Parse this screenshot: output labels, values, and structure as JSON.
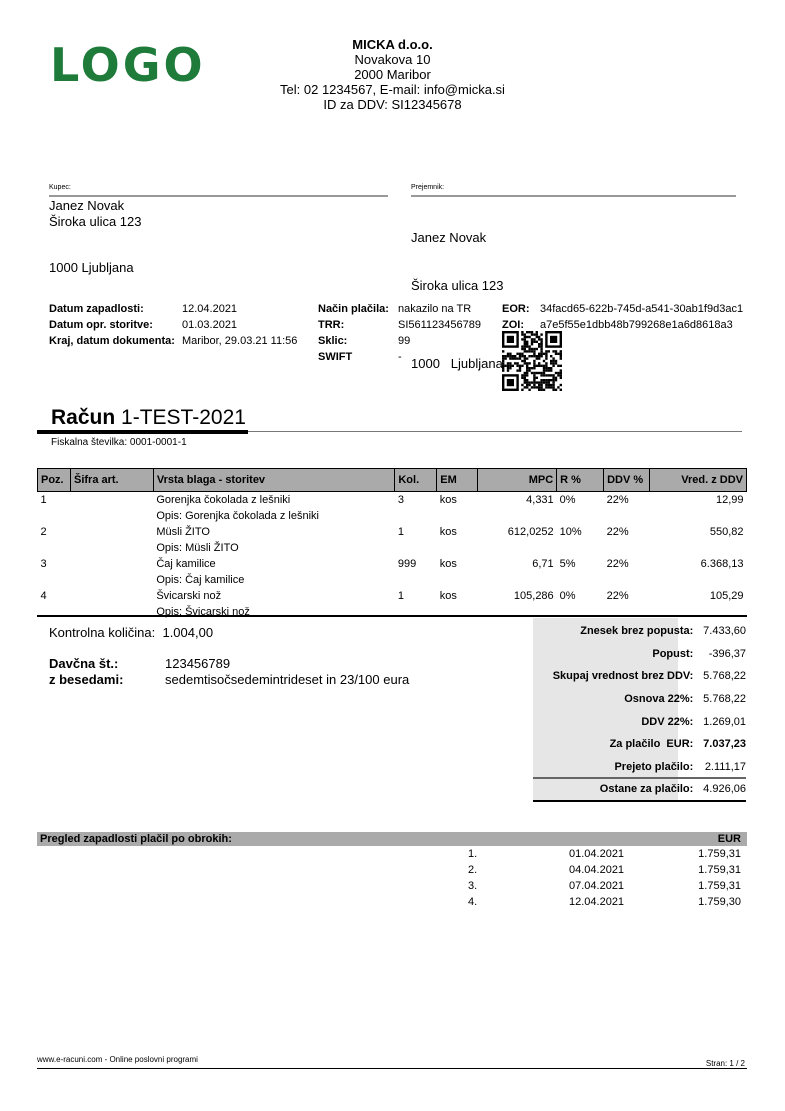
{
  "logo": "LOGO",
  "company": {
    "name": "MICKA d.o.o.",
    "street": "Novakova 10",
    "city": "2000 Maribor",
    "contact": "Tel: 02 1234567, E-mail: info@micka.si",
    "vat": "ID za DDV: SI12345678"
  },
  "buyer": {
    "label": "Kupec:",
    "name": "Janez Novak",
    "street": "Široka ulica 123",
    "city": "1000 Ljubljana"
  },
  "recipient": {
    "label": "Prejemnik:",
    "name": "Janez Novak",
    "street": "Široka ulica 123",
    "city": "1000   Ljubljana"
  },
  "meta": {
    "due_label": "Datum zapadlosti:",
    "due": "12.04.2021",
    "service_label": "Datum opr. storitve:",
    "service": "01.03.2021",
    "place_label": "Kraj, datum dokumenta:",
    "place": "Maribor, 29.03.21 11:56",
    "payment_label": "Način plačila:",
    "payment": "nakazilo na TR",
    "trr_label": "TRR:",
    "trr": "SI561123456789",
    "ref_label": "Sklic:",
    "ref": "99",
    "swift_label": "SWIFT",
    "swift": "-",
    "eor_label": "EOR:",
    "eor": "34facd65-622b-745d-a541-30ab1f9d3ac1",
    "zoi_label": "ZOI:",
    "zoi": "a7e5f55e1dbb48b799268e1a6d8618a3"
  },
  "invoice": {
    "title": "Račun",
    "number": "1-TEST-2021",
    "fiscal": "Fiskalna številka: 0001-0001-1"
  },
  "table": {
    "headers": [
      "Poz.",
      "Šifra art.",
      "Vrsta blaga - storitev",
      "Kol.",
      "EM",
      "MPC",
      "R %",
      "DDV %",
      "Vred. z DDV"
    ],
    "rows": [
      {
        "poz": "1",
        "sifra": "",
        "name": "Gorenjka čokolada z lešniki",
        "desc": "Opis: Gorenjka čokolada z lešniki",
        "kol": "3",
        "em": "kos",
        "mpc": "4,331",
        "r": "0%",
        "ddv": "22%",
        "value": "12,99"
      },
      {
        "poz": "2",
        "sifra": "",
        "name": "Müsli ŽITO",
        "desc": "Opis: Müsli ŽITO",
        "kol": "1",
        "em": "kos",
        "mpc": "612,0252",
        "r": "10%",
        "ddv": "22%",
        "value": "550,82"
      },
      {
        "poz": "3",
        "sifra": "",
        "name": "Čaj kamilice",
        "desc": "Opis: Čaj kamilice",
        "kol": "999",
        "em": "kos",
        "mpc": "6,71",
        "r": "5%",
        "ddv": "22%",
        "value": "6.368,13"
      },
      {
        "poz": "4",
        "sifra": "",
        "name": "Švicarski nož",
        "desc": "Opis: Švicarski nož",
        "kol": "1",
        "em": "kos",
        "mpc": "105,286",
        "r": "0%",
        "ddv": "22%",
        "value": "105,29"
      }
    ]
  },
  "control": {
    "label": "Kontrolna količina:",
    "value": "1.004,00"
  },
  "tax": {
    "label": "Davčna št.:",
    "value": "123456789",
    "words_label": "z besedami:",
    "words": "sedemtisočsedemintrideset in 23/100 eura"
  },
  "summary": [
    {
      "label": "Znesek brez popusta:",
      "value": "7.433,60"
    },
    {
      "label": "Popust:",
      "value": "-396,37"
    },
    {
      "label": "Skupaj vrednost brez DDV:",
      "value": "5.768,22"
    },
    {
      "label": "Osnova 22%:",
      "value": "5.768,22"
    },
    {
      "label": "DDV 22%:",
      "value": "1.269,01"
    },
    {
      "label": "Za plačilo  EUR:",
      "value": "7.037,23"
    },
    {
      "label": "Prejeto plačilo:",
      "value": "2.111,17"
    },
    {
      "label": "Ostane za plačilo:",
      "value": "4.926,06"
    }
  ],
  "installments": {
    "title": "Pregled zapadlosti plačil po obrokih:",
    "currency": "EUR",
    "rows": [
      {
        "n": "1.",
        "date": "01.04.2021",
        "amount": "1.759,31"
      },
      {
        "n": "2.",
        "date": "04.04.2021",
        "amount": "1.759,31"
      },
      {
        "n": "3.",
        "date": "07.04.2021",
        "amount": "1.759,31"
      },
      {
        "n": "4.",
        "date": "12.04.2021",
        "amount": "1.759,30"
      }
    ]
  },
  "footer": {
    "left": "www.e-racuni.com - Online poslovni programi",
    "right": "Stran: 1 / 2"
  },
  "colors": {
    "logo": "#1e7b3a",
    "header_fill": "#aaaaaa",
    "summary_fill": "#e6e6e6"
  }
}
